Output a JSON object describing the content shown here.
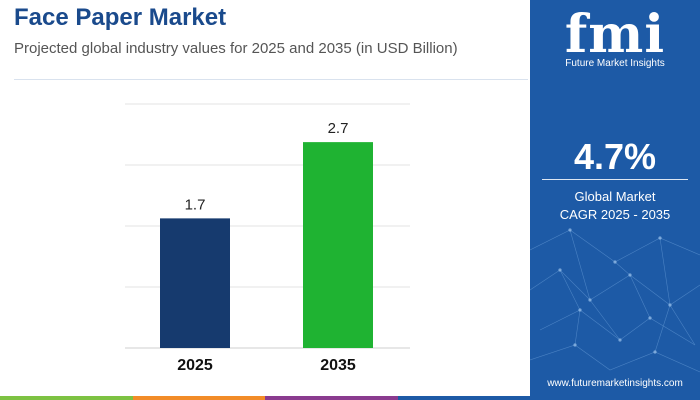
{
  "header": {
    "title": "Face Paper Market",
    "subtitle": "Projected global industry values for 2025 and 2035 (in USD Billion)"
  },
  "chart_data": {
    "type": "bar",
    "categories": [
      "2025",
      "2035"
    ],
    "values": [
      1.7,
      2.7
    ],
    "data_labels": [
      "1.7",
      "2.7"
    ],
    "bar_colors": [
      "#163a6e",
      "#1fb332"
    ],
    "ylim": [
      0,
      3.2
    ],
    "grid": true,
    "legend": "none"
  },
  "sidebar": {
    "logo_text": "fmi",
    "logo_subtitle": "Future Market Insights",
    "cagr_value": "4.7%",
    "cagr_label_line1": "Global Market",
    "cagr_label_line2": "CAGR 2025 - 2035",
    "website": "www.futuremarketinsights.com"
  },
  "colors": {
    "title": "#1a4a8c",
    "sidebar_bg": "#1d5aa6",
    "bottom_bar": [
      "#7dc242",
      "#f28c28",
      "#8a3b8f",
      "#1d5aa6"
    ]
  }
}
